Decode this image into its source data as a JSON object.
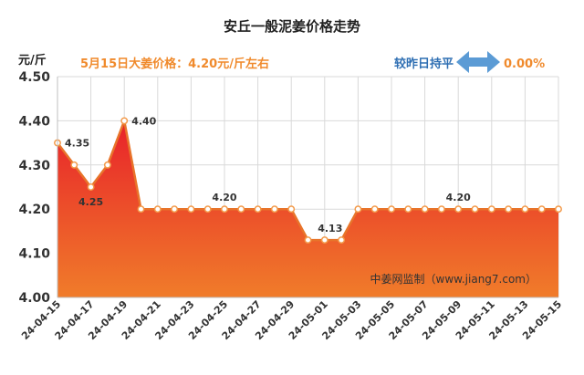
{
  "header": {
    "title": "安丘一般泥姜价格走势",
    "unit": "元/斤",
    "price_note": "5月15日大姜价格：4.20元/斤左右",
    "compare_label": "较昨日持平",
    "compare_value": "0.00%",
    "compare_icon": "double-arrow-icon"
  },
  "watermark": "中姜网监制（www.jiang7.com）",
  "colors": {
    "fill_top": "#e8222a",
    "fill_bottom": "#f07c2a",
    "line": "#e8742a",
    "marker": "#f39a4a",
    "arrow": "#5b9bd5"
  },
  "chart_data": {
    "type": "area",
    "title": "安丘一般泥姜价格走势",
    "ylabel": "元/斤",
    "xlabel": "",
    "ylim": [
      4.0,
      4.5
    ],
    "yticks": [
      "4.00",
      "4.10",
      "4.20",
      "4.30",
      "4.40",
      "4.50"
    ],
    "x": [
      "24-04-15",
      "24-04-16",
      "24-04-17",
      "24-04-18",
      "24-04-19",
      "24-04-20",
      "24-04-21",
      "24-04-22",
      "24-04-23",
      "24-04-24",
      "24-04-25",
      "24-04-26",
      "24-04-27",
      "24-04-28",
      "24-04-29",
      "24-04-30",
      "24-05-01",
      "24-05-02",
      "24-05-03",
      "24-05-04",
      "24-05-05",
      "24-05-06",
      "24-05-07",
      "24-05-08",
      "24-05-09",
      "24-05-10",
      "24-05-11",
      "24-05-12",
      "24-05-13",
      "24-05-14",
      "24-05-15"
    ],
    "values": [
      4.35,
      4.3,
      4.25,
      4.3,
      4.4,
      4.2,
      4.2,
      4.2,
      4.2,
      4.2,
      4.2,
      4.2,
      4.2,
      4.2,
      4.2,
      4.13,
      4.13,
      4.13,
      4.2,
      4.2,
      4.2,
      4.2,
      4.2,
      4.2,
      4.2,
      4.2,
      4.2,
      4.2,
      4.2,
      4.2,
      4.2
    ],
    "xtick_labels": [
      "24-04-15",
      "24-04-17",
      "24-04-19",
      "24-04-21",
      "24-04-23",
      "24-04-25",
      "24-04-27",
      "24-04-29",
      "24-05-01",
      "24-05-03",
      "24-05-05",
      "24-05-07",
      "24-05-09",
      "24-05-11",
      "24-05-13",
      "24-05-15"
    ],
    "data_labels": [
      {
        "x": "24-04-15",
        "text": "4.35"
      },
      {
        "x": "24-04-17",
        "text": "4.25"
      },
      {
        "x": "24-04-19",
        "text": "4.40"
      },
      {
        "x": "24-04-25",
        "text": "4.20"
      },
      {
        "x": "24-05-01",
        "text": "4.13"
      },
      {
        "x": "24-05-09",
        "text": "4.20"
      }
    ],
    "grid": true,
    "legend": "none"
  }
}
